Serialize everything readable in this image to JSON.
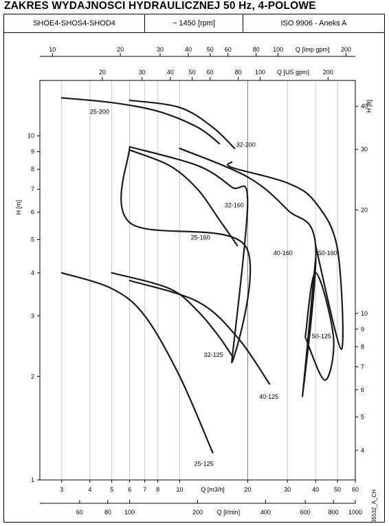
{
  "title": "ZAKRES WYDAJNOSCI HYDRAULICZNEJ 50 Hz, 4-POLOWE",
  "header": {
    "models": "SHOE4-SHOS4-SHOD4",
    "speed": "~ 1450 [rpm]",
    "standard": "ISO 9906 - Aneks A"
  },
  "figure_code": "05532_A_CH",
  "chart_data": {
    "type": "line",
    "scale": "log-log",
    "grid": "vertical",
    "axes": {
      "x_main": {
        "label": "Q [m3/h]",
        "ticks": [
          3,
          4,
          5,
          6,
          7,
          8,
          10,
          20,
          30,
          40,
          50,
          60
        ],
        "range": [
          2.4,
          60
        ]
      },
      "x_lmin": {
        "label": "Q [l/min]",
        "ticks": [
          60,
          80,
          100,
          200,
          400,
          600,
          800,
          1000
        ]
      },
      "x_usgpm": {
        "label": "Q [US gpm]",
        "ticks": [
          20,
          30,
          40,
          50,
          60,
          80,
          100,
          200
        ]
      },
      "x_impgpm": {
        "label": "Q [Imp gpm]",
        "ticks": [
          10,
          20,
          30,
          40,
          50,
          60,
          80,
          100,
          200
        ]
      },
      "y_main": {
        "label": "H [m]",
        "ticks": [
          1,
          2,
          3,
          4,
          5,
          6,
          7,
          8,
          9,
          10
        ],
        "range": [
          1,
          14.5
        ]
      },
      "y_ft": {
        "label": "H [ft]",
        "ticks": [
          4,
          5,
          6,
          7,
          8,
          9,
          10,
          20,
          30,
          40
        ]
      }
    },
    "series": [
      {
        "name": "25-200",
        "points": [
          [
            3,
            12.9
          ],
          [
            5,
            12.5
          ],
          [
            8,
            11.8
          ],
          [
            12,
            10.6
          ],
          [
            15,
            9.5
          ]
        ]
      },
      {
        "name": "32-200",
        "points": [
          [
            6,
            12.7
          ],
          [
            10,
            12.1
          ],
          [
            14,
            10.6
          ],
          [
            17.5,
            9.2
          ]
        ]
      },
      {
        "name": "32-160",
        "points": [
          [
            6,
            9.3
          ],
          [
            12,
            8.2
          ],
          [
            17,
            7.1
          ],
          [
            20,
            6.4
          ],
          [
            17,
            2.2
          ],
          [
            19.5,
            4.8
          ],
          [
            6,
            5.6
          ],
          [
            6,
            9.3
          ]
        ]
      },
      {
        "name": "25-160",
        "points": [
          [
            6,
            9.1
          ],
          [
            9,
            8.2
          ],
          [
            12,
            7.0
          ],
          [
            15,
            5.7
          ],
          [
            18,
            4.8
          ]
        ]
      },
      {
        "name": "40-160",
        "points": [
          [
            10,
            9.2
          ],
          [
            20,
            7.6
          ],
          [
            30,
            6.1
          ],
          [
            40,
            4.8
          ],
          [
            35,
            1.75
          ],
          [
            40,
            4.4
          ]
        ]
      },
      {
        "name": "50-160",
        "points": [
          [
            17,
            8.4
          ],
          [
            17,
            8.1
          ],
          [
            30,
            7.3
          ],
          [
            40,
            6.4
          ],
          [
            50,
            4.7
          ],
          [
            52,
            2.4
          ],
          [
            40,
            4.8
          ]
        ]
      },
      {
        "name": "25-125",
        "points": [
          [
            3,
            4.0
          ],
          [
            5,
            3.6
          ],
          [
            7,
            3.0
          ],
          [
            10,
            2.0
          ],
          [
            14,
            1.2
          ]
        ]
      },
      {
        "name": "32-125",
        "points": [
          [
            5,
            4.0
          ],
          [
            9,
            3.6
          ],
          [
            12,
            3.1
          ],
          [
            15,
            2.6
          ],
          [
            17,
            2.3
          ]
        ]
      },
      {
        "name": "40-125",
        "points": [
          [
            6,
            3.8
          ],
          [
            12,
            3.3
          ],
          [
            18,
            2.6
          ],
          [
            25,
            1.9
          ]
        ]
      },
      {
        "name": "50-125",
        "points": [
          [
            36,
            2.6
          ],
          [
            40,
            4.0
          ],
          [
            48,
            2.6
          ],
          [
            44,
            1.95
          ],
          [
            36,
            2.6
          ]
        ]
      }
    ]
  }
}
